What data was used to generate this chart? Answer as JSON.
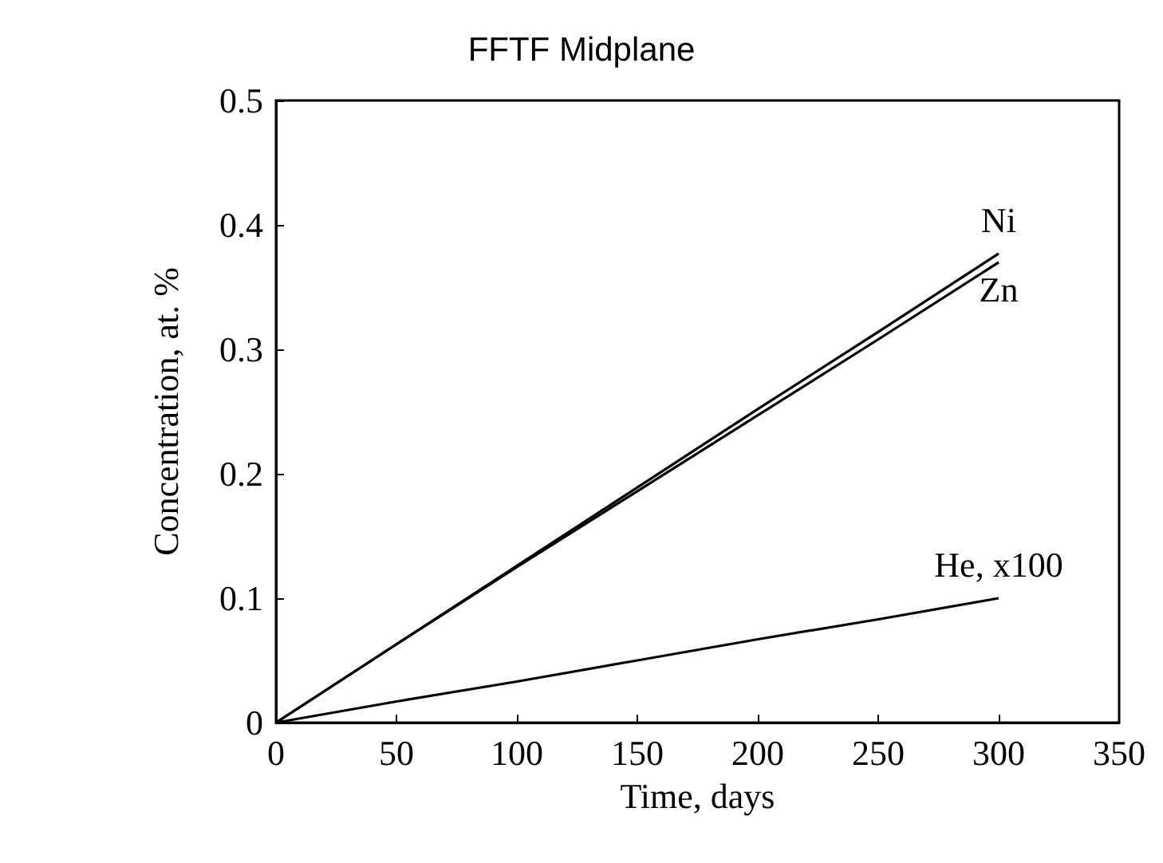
{
  "chart_data": {
    "type": "line",
    "title": "FFTF Midplane",
    "xlabel": "Time, days",
    "ylabel": "Concentration, at. %",
    "x": [
      0,
      50,
      100,
      150,
      200,
      250,
      300
    ],
    "series": [
      {
        "name": "Ni",
        "color": "#000000",
        "values": [
          0,
          0.063,
          0.126,
          0.189,
          0.252,
          0.314,
          0.377
        ]
      },
      {
        "name": "Zn",
        "color": "#000000",
        "values": [
          0,
          0.063,
          0.125,
          0.186,
          0.247,
          0.308,
          0.37
        ]
      },
      {
        "name": "He, x100",
        "color": "#000000",
        "values": [
          0,
          0.017,
          0.033,
          0.05,
          0.067,
          0.083,
          0.1
        ]
      }
    ],
    "xlim": [
      0,
      350
    ],
    "xticks": [
      0,
      50,
      100,
      150,
      200,
      250,
      300,
      350
    ],
    "ylim": [
      0,
      0.5
    ],
    "yticks": [
      0,
      0.1,
      0.2,
      0.3,
      0.4,
      0.5
    ],
    "grid": false,
    "legend": false,
    "marker": "none",
    "line_style": "solid"
  }
}
